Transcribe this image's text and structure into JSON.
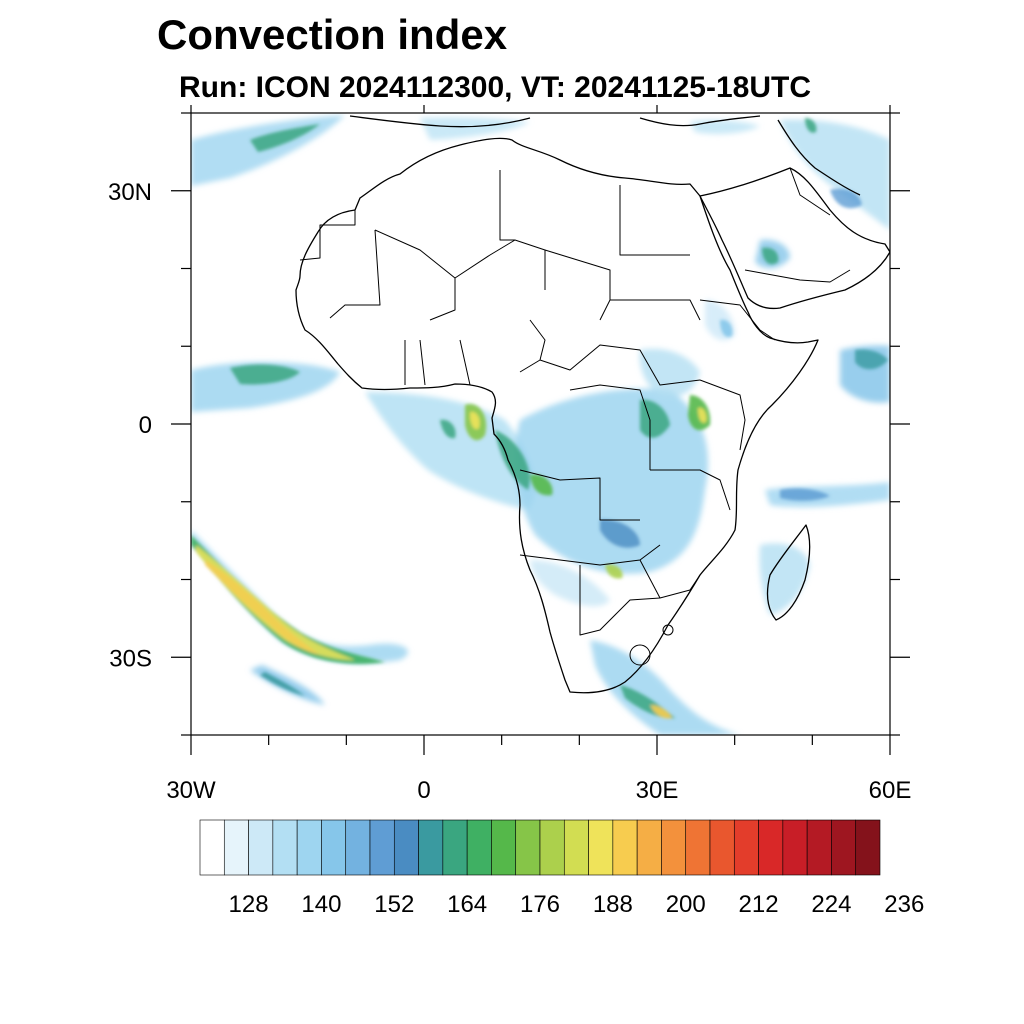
{
  "title": "Convection index",
  "subtitle": "Run: ICON 2024112300,  VT: 20241125-18UTC",
  "map": {
    "extent": {
      "lon": [
        -30,
        60
      ],
      "lat": [
        -40,
        40
      ]
    },
    "x_ticks": [
      {
        "value": -30,
        "label": "30W"
      },
      {
        "value": 0,
        "label": "0"
      },
      {
        "value": 30,
        "label": "30E"
      },
      {
        "value": 60,
        "label": "60E"
      }
    ],
    "y_ticks": [
      {
        "value": 30,
        "label": "30N"
      },
      {
        "value": 0,
        "label": "0"
      },
      {
        "value": -30,
        "label": "30S"
      }
    ],
    "minor_step_deg": 10
  },
  "chart_data": {
    "type": "heatmap",
    "title": "Convection index",
    "subtitle": "Run: ICON 2024112300,  VT: 20241125-18UTC",
    "xlabel": "",
    "ylabel": "",
    "x_range": [
      -30,
      60
    ],
    "y_range": [
      -40,
      40
    ],
    "colorbar": {
      "level_start": 120,
      "level_step": 4,
      "tick_labels": [
        "128",
        "140",
        "152",
        "164",
        "176",
        "188",
        "200",
        "212",
        "224",
        "236"
      ],
      "colors": [
        "#ffffff",
        "#e6f4fb",
        "#cde9f7",
        "#b3dff3",
        "#9ed5f0",
        "#86c6ea",
        "#73b2e0",
        "#5f9dd4",
        "#4a8cc2",
        "#3a9aa0",
        "#3aa680",
        "#3fb063",
        "#55b84a",
        "#86c548",
        "#acd04c",
        "#d2dd52",
        "#efe35a",
        "#f7cc4f",
        "#f5ae45",
        "#f3913c",
        "#ef7434",
        "#e9572e",
        "#e33d2b",
        "#d92828",
        "#c81e27",
        "#b41a24",
        "#9e1620",
        "#84121b"
      ]
    }
  }
}
